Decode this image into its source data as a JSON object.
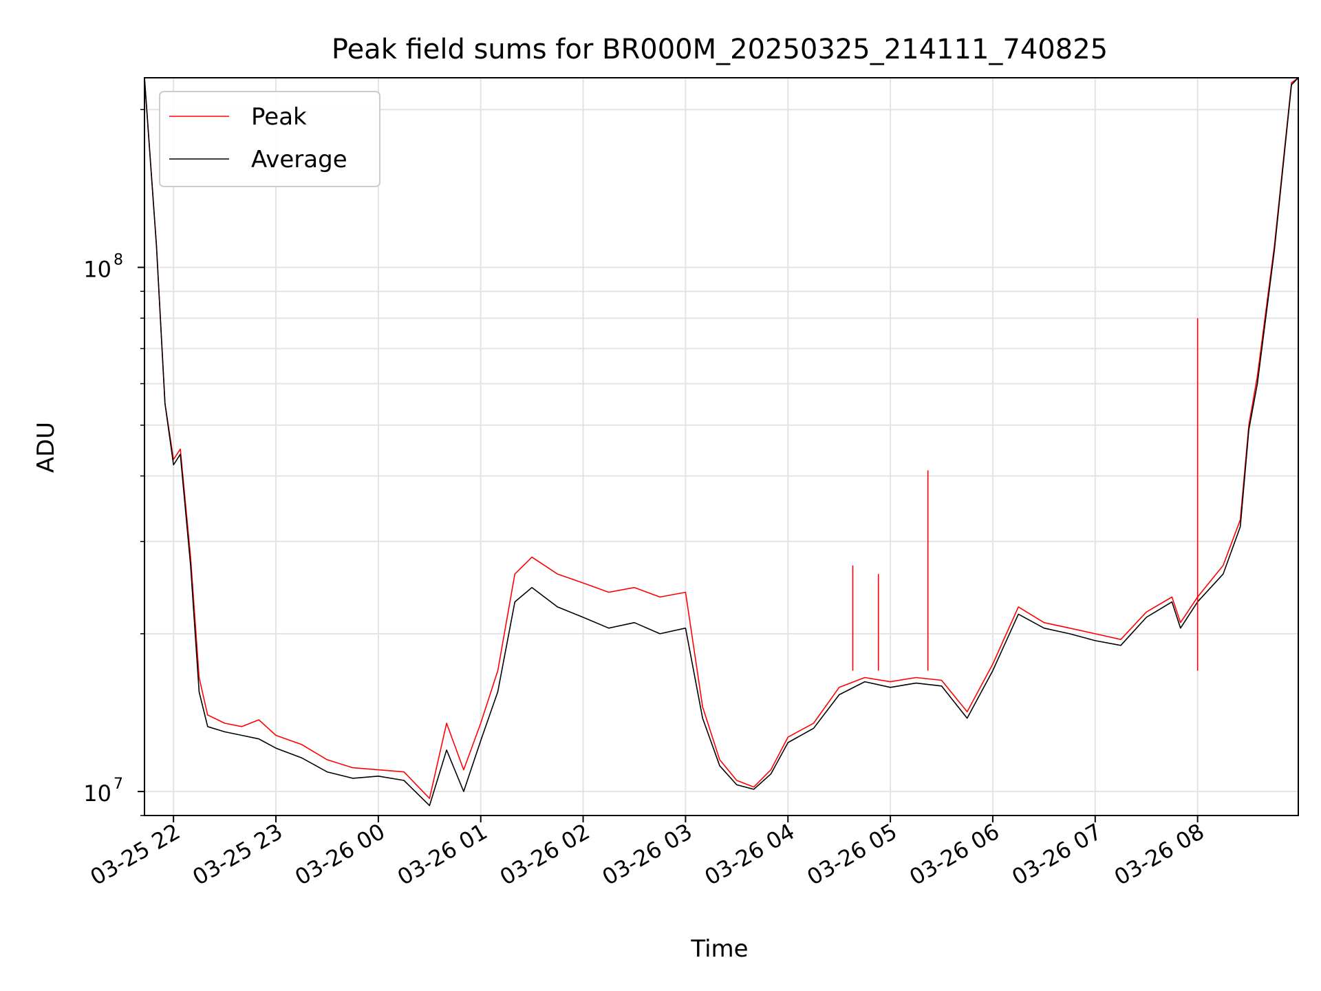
{
  "chart_data": {
    "type": "line",
    "title": "Peak field sums for BR000M_20250325_214111_740825",
    "xlabel": "Time",
    "ylabel": "ADU",
    "x_range": [
      "2025-03-25 21:43",
      "2025-03-26 08:59"
    ],
    "y_scale": "log",
    "ylim": [
      9000000.0,
      230000000.0
    ],
    "grid": true,
    "legend_position": "top-left",
    "x_ticks": [
      "03-25 22",
      "03-25 23",
      "03-26 00",
      "03-26 01",
      "03-26 02",
      "03-26 03",
      "03-26 04",
      "03-26 05",
      "03-26 06",
      "03-26 07",
      "03-26 08"
    ],
    "x_tick_times": [
      "2025-03-25 22:00",
      "2025-03-25 23:00",
      "2025-03-26 00:00",
      "2025-03-26 01:00",
      "2025-03-26 02:00",
      "2025-03-26 03:00",
      "2025-03-26 04:00",
      "2025-03-26 05:00",
      "2025-03-26 06:00",
      "2025-03-26 07:00",
      "2025-03-26 08:00"
    ],
    "y_ticks": [
      {
        "label": "10",
        "exp": "7",
        "value": 10000000
      },
      {
        "label": "10",
        "exp": "8",
        "value": 100000000
      }
    ],
    "series": [
      {
        "name": "Peak",
        "color": "#ff0000",
        "points": [
          [
            "2025-03-25 21:43",
            230000000
          ],
          [
            "2025-03-25 21:50",
            110000000
          ],
          [
            "2025-03-25 21:55",
            55000000
          ],
          [
            "2025-03-25 22:00",
            43000000
          ],
          [
            "2025-03-25 22:04",
            45000000
          ],
          [
            "2025-03-25 22:10",
            28000000
          ],
          [
            "2025-03-25 22:15",
            16500000
          ],
          [
            "2025-03-25 22:20",
            14000000
          ],
          [
            "2025-03-25 22:30",
            13500000
          ],
          [
            "2025-03-25 22:40",
            13300000
          ],
          [
            "2025-03-25 22:50",
            13700000
          ],
          [
            "2025-03-25 23:00",
            12800000
          ],
          [
            "2025-03-25 23:15",
            12300000
          ],
          [
            "2025-03-25 23:30",
            11500000
          ],
          [
            "2025-03-25 23:45",
            11100000
          ],
          [
            "2025-03-26 00:00",
            11000000
          ],
          [
            "2025-03-26 00:15",
            10900000
          ],
          [
            "2025-03-26 00:30",
            9700000
          ],
          [
            "2025-03-26 00:40",
            13500000
          ],
          [
            "2025-03-26 00:50",
            11000000
          ],
          [
            "2025-03-26 01:00",
            13500000
          ],
          [
            "2025-03-26 01:10",
            17000000
          ],
          [
            "2025-03-26 01:20",
            26000000
          ],
          [
            "2025-03-26 01:30",
            28000000
          ],
          [
            "2025-03-26 01:45",
            26000000
          ],
          [
            "2025-03-26 02:00",
            25000000
          ],
          [
            "2025-03-26 02:15",
            24000000
          ],
          [
            "2025-03-26 02:30",
            24500000
          ],
          [
            "2025-03-26 02:45",
            23500000
          ],
          [
            "2025-03-26 03:00",
            24000000
          ],
          [
            "2025-03-26 03:10",
            14500000
          ],
          [
            "2025-03-26 03:20",
            11500000
          ],
          [
            "2025-03-26 03:30",
            10500000
          ],
          [
            "2025-03-26 03:40",
            10200000
          ],
          [
            "2025-03-26 03:50",
            11000000
          ],
          [
            "2025-03-26 04:00",
            12700000
          ],
          [
            "2025-03-26 04:15",
            13500000
          ],
          [
            "2025-03-26 04:30",
            15800000
          ],
          [
            "2025-03-26 04:45",
            16500000
          ],
          [
            "2025-03-26 05:00",
            16200000
          ],
          [
            "2025-03-26 05:15",
            16500000
          ],
          [
            "2025-03-26 05:30",
            16300000
          ],
          [
            "2025-03-26 05:45",
            14200000
          ],
          [
            "2025-03-26 06:00",
            17500000
          ],
          [
            "2025-03-26 06:15",
            22500000
          ],
          [
            "2025-03-26 06:30",
            21000000
          ],
          [
            "2025-03-26 06:45",
            20500000
          ],
          [
            "2025-03-26 07:00",
            20000000
          ],
          [
            "2025-03-26 07:15",
            19500000
          ],
          [
            "2025-03-26 07:30",
            22000000
          ],
          [
            "2025-03-26 07:45",
            23500000
          ],
          [
            "2025-03-26 07:50",
            21000000
          ],
          [
            "2025-03-26 08:00",
            23500000
          ],
          [
            "2025-03-26 08:15",
            27000000
          ],
          [
            "2025-03-26 08:25",
            33000000
          ],
          [
            "2025-03-26 08:30",
            50000000
          ],
          [
            "2025-03-26 08:35",
            62000000
          ],
          [
            "2025-03-26 08:45",
            110000000
          ],
          [
            "2025-03-26 08:55",
            225000000
          ],
          [
            "2025-03-26 08:59",
            230000000
          ]
        ]
      },
      {
        "name": "Average",
        "color": "#000000",
        "points": [
          [
            "2025-03-25 21:43",
            230000000
          ],
          [
            "2025-03-25 21:50",
            110000000
          ],
          [
            "2025-03-25 21:55",
            55000000
          ],
          [
            "2025-03-25 22:00",
            42000000
          ],
          [
            "2025-03-25 22:04",
            44000000
          ],
          [
            "2025-03-25 22:10",
            27000000
          ],
          [
            "2025-03-25 22:15",
            15500000
          ],
          [
            "2025-03-25 22:20",
            13300000
          ],
          [
            "2025-03-25 22:30",
            13000000
          ],
          [
            "2025-03-25 22:40",
            12800000
          ],
          [
            "2025-03-25 22:50",
            12600000
          ],
          [
            "2025-03-25 23:00",
            12100000
          ],
          [
            "2025-03-25 23:15",
            11600000
          ],
          [
            "2025-03-25 23:30",
            10900000
          ],
          [
            "2025-03-25 23:45",
            10600000
          ],
          [
            "2025-03-26 00:00",
            10700000
          ],
          [
            "2025-03-26 00:15",
            10500000
          ],
          [
            "2025-03-26 00:30",
            9400000
          ],
          [
            "2025-03-26 00:40",
            12000000
          ],
          [
            "2025-03-26 00:50",
            10000000
          ],
          [
            "2025-03-26 01:00",
            12500000
          ],
          [
            "2025-03-26 01:10",
            15500000
          ],
          [
            "2025-03-26 01:20",
            23000000
          ],
          [
            "2025-03-26 01:30",
            24500000
          ],
          [
            "2025-03-26 01:45",
            22500000
          ],
          [
            "2025-03-26 02:00",
            21500000
          ],
          [
            "2025-03-26 02:15",
            20500000
          ],
          [
            "2025-03-26 02:30",
            21000000
          ],
          [
            "2025-03-26 02:45",
            20000000
          ],
          [
            "2025-03-26 03:00",
            20500000
          ],
          [
            "2025-03-26 03:10",
            13800000
          ],
          [
            "2025-03-26 03:20",
            11200000
          ],
          [
            "2025-03-26 03:30",
            10300000
          ],
          [
            "2025-03-26 03:40",
            10100000
          ],
          [
            "2025-03-26 03:50",
            10800000
          ],
          [
            "2025-03-26 04:00",
            12400000
          ],
          [
            "2025-03-26 04:15",
            13200000
          ],
          [
            "2025-03-26 04:30",
            15300000
          ],
          [
            "2025-03-26 04:45",
            16200000
          ],
          [
            "2025-03-26 05:00",
            15800000
          ],
          [
            "2025-03-26 05:15",
            16100000
          ],
          [
            "2025-03-26 05:30",
            15900000
          ],
          [
            "2025-03-26 05:45",
            13800000
          ],
          [
            "2025-03-26 06:00",
            17000000
          ],
          [
            "2025-03-26 06:15",
            21800000
          ],
          [
            "2025-03-26 06:30",
            20500000
          ],
          [
            "2025-03-26 06:45",
            20000000
          ],
          [
            "2025-03-26 07:00",
            19400000
          ],
          [
            "2025-03-26 07:15",
            19000000
          ],
          [
            "2025-03-26 07:30",
            21500000
          ],
          [
            "2025-03-26 07:45",
            23000000
          ],
          [
            "2025-03-26 07:50",
            20500000
          ],
          [
            "2025-03-26 08:00",
            23000000
          ],
          [
            "2025-03-26 08:15",
            26000000
          ],
          [
            "2025-03-26 08:25",
            32000000
          ],
          [
            "2025-03-26 08:30",
            49000000
          ],
          [
            "2025-03-26 08:35",
            60000000
          ],
          [
            "2025-03-26 08:45",
            108000000
          ],
          [
            "2025-03-26 08:55",
            223000000
          ],
          [
            "2025-03-26 08:59",
            230000000
          ]
        ]
      }
    ],
    "annotations": [
      {
        "type": "spike",
        "series": "Peak",
        "x": "2025-03-26 05:22",
        "y": 41000000
      },
      {
        "type": "spike",
        "series": "Peak",
        "x": "2025-03-26 08:00",
        "y": 80000000
      },
      {
        "type": "spike",
        "series": "Peak",
        "x": "2025-03-26 04:53",
        "y": 26000000
      },
      {
        "type": "spike",
        "series": "Peak",
        "x": "2025-03-26 04:38",
        "y": 27000000
      }
    ]
  }
}
